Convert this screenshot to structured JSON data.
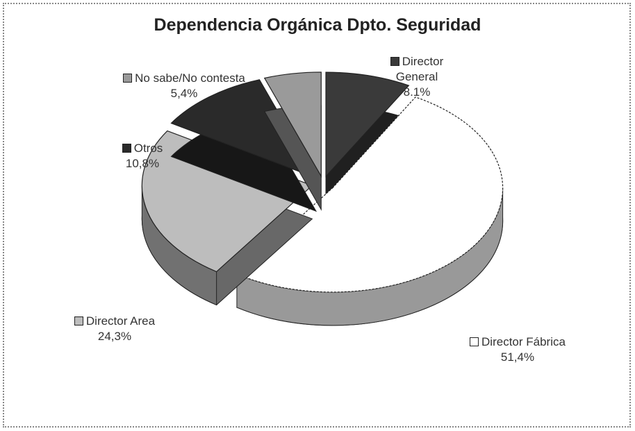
{
  "chart_data": {
    "type": "pie3d",
    "title": "Dependencia Orgánica Dpto. Seguridad",
    "categories": [
      "Director General",
      "Director Fábrica",
      "Director Area",
      "Otros",
      "No sabe/No contesta"
    ],
    "values": [
      8.1,
      51.4,
      24.3,
      10.8,
      5.4
    ],
    "value_labels": [
      "8.1%",
      "51,4%",
      "24,3%",
      "10,8%",
      "5,4%"
    ],
    "colors": [
      "#3a3a3a",
      "#ffffff",
      "#bdbdbd",
      "#2a2a2a",
      "#9a9a9a"
    ]
  }
}
